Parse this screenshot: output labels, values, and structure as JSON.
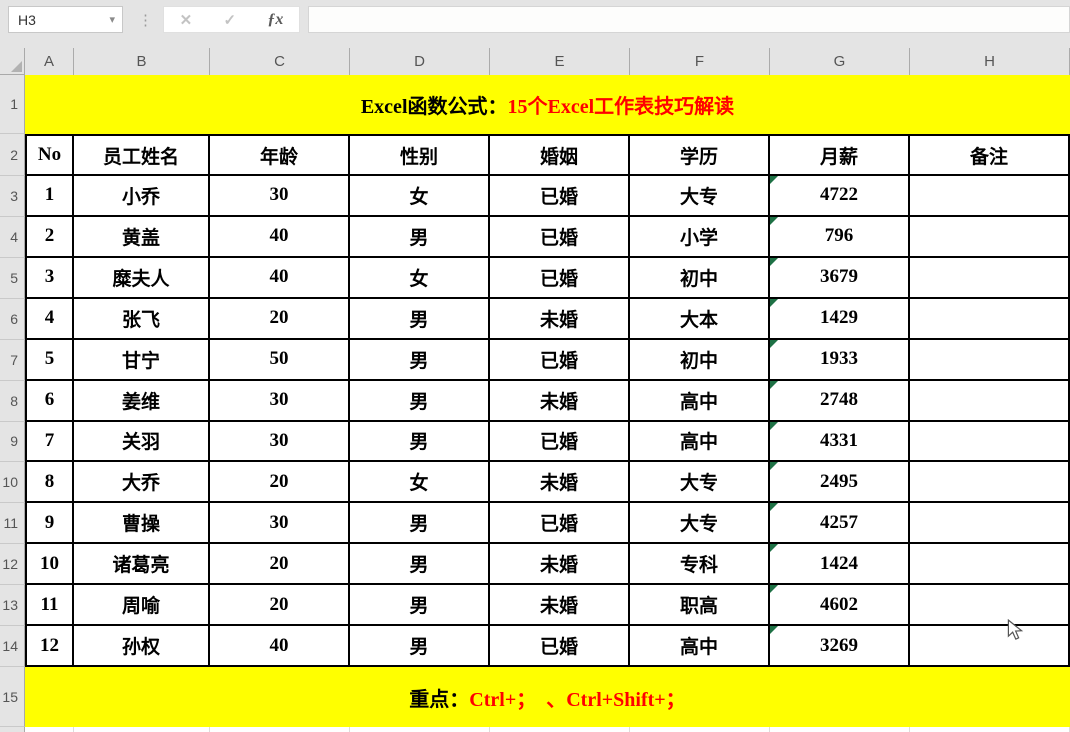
{
  "toolbar": {
    "name_box": "H3",
    "formula_value": "",
    "icons": {
      "dropdown": "▾",
      "more": "⋮",
      "cancel": "✕",
      "enter": "✓",
      "fx": "ƒx"
    }
  },
  "sheet": {
    "column_headers": [
      "A",
      "B",
      "C",
      "D",
      "E",
      "F",
      "G",
      "H"
    ],
    "row_numbers": [
      "1",
      "2",
      "3",
      "4",
      "5",
      "6",
      "7",
      "8",
      "9",
      "10",
      "11",
      "12",
      "13",
      "14",
      "15"
    ]
  },
  "title": {
    "prefix": "Excel函数公式：",
    "highlight": "15个Excel工作表技巧解读"
  },
  "table": {
    "headers": [
      "No",
      "员工姓名",
      "年龄",
      "性别",
      "婚姻",
      "学历",
      "月薪",
      "备注"
    ],
    "rows": [
      [
        "1",
        "小乔",
        "30",
        "女",
        "已婚",
        "大专",
        "4722",
        ""
      ],
      [
        "2",
        "黄盖",
        "40",
        "男",
        "已婚",
        "小学",
        "796",
        ""
      ],
      [
        "3",
        "糜夫人",
        "40",
        "女",
        "已婚",
        "初中",
        "3679",
        ""
      ],
      [
        "4",
        "张飞",
        "20",
        "男",
        "未婚",
        "大本",
        "1429",
        ""
      ],
      [
        "5",
        "甘宁",
        "50",
        "男",
        "已婚",
        "初中",
        "1933",
        ""
      ],
      [
        "6",
        "姜维",
        "30",
        "男",
        "未婚",
        "高中",
        "2748",
        ""
      ],
      [
        "7",
        "关羽",
        "30",
        "男",
        "已婚",
        "高中",
        "4331",
        ""
      ],
      [
        "8",
        "大乔",
        "20",
        "女",
        "未婚",
        "大专",
        "2495",
        ""
      ],
      [
        "9",
        "曹操",
        "30",
        "男",
        "已婚",
        "大专",
        "4257",
        ""
      ],
      [
        "10",
        "诸葛亮",
        "20",
        "男",
        "未婚",
        "专科",
        "1424",
        ""
      ],
      [
        "11",
        "周喻",
        "20",
        "男",
        "未婚",
        "职高",
        "4602",
        ""
      ],
      [
        "12",
        "孙权",
        "40",
        "男",
        "已婚",
        "高中",
        "3269",
        ""
      ]
    ],
    "salary_flag_column": 6
  },
  "footer": {
    "prefix": "重点：",
    "highlight": "Ctrl+；  、Ctrl+Shift+；"
  },
  "colors": {
    "banner_yellow": "#ffff00",
    "accent_red": "#ff0000",
    "flag_green": "#1e7145"
  }
}
